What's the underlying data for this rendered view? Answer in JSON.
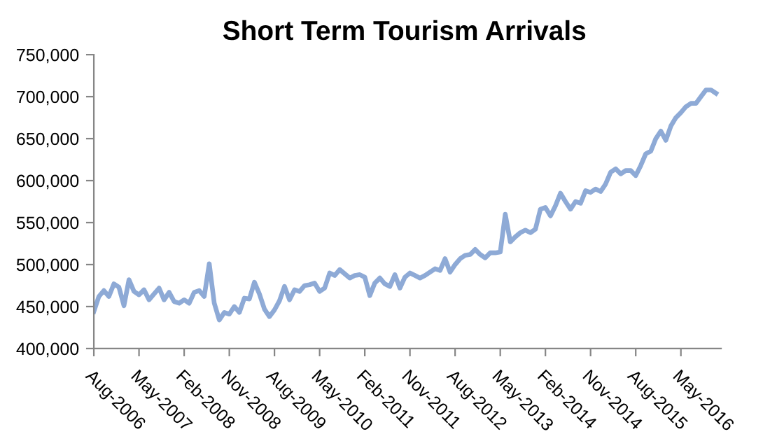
{
  "chart_data": {
    "type": "line",
    "title": "Short Term Tourism Arrivals",
    "categories": [
      "Aug-2006",
      null,
      null,
      null,
      null,
      null,
      null,
      null,
      null,
      "May-2007",
      null,
      null,
      null,
      null,
      null,
      null,
      null,
      null,
      "Feb-2008",
      null,
      null,
      null,
      null,
      null,
      null,
      null,
      null,
      "Nov-2008",
      null,
      null,
      null,
      null,
      null,
      null,
      null,
      null,
      "Aug-2009",
      null,
      null,
      null,
      null,
      null,
      null,
      null,
      null,
      "May-2010",
      null,
      null,
      null,
      null,
      null,
      null,
      null,
      null,
      "Feb-2011",
      null,
      null,
      null,
      null,
      null,
      null,
      null,
      null,
      "Nov-2011",
      null,
      null,
      null,
      null,
      null,
      null,
      null,
      null,
      "Aug-2012",
      null,
      null,
      null,
      null,
      null,
      null,
      null,
      null,
      "May-2013",
      null,
      null,
      null,
      null,
      null,
      null,
      null,
      null,
      "Feb-2014",
      null,
      null,
      null,
      null,
      null,
      null,
      null,
      null,
      "Nov-2014",
      null,
      null,
      null,
      null,
      null,
      null,
      null,
      null,
      "Aug-2015",
      null,
      null,
      null,
      null,
      null,
      null,
      null,
      null,
      "May-2016",
      null,
      null,
      null,
      null,
      null,
      null,
      null
    ],
    "series": [
      {
        "color": "#8eaad6",
        "values": [
          444000,
          462000,
          469000,
          462000,
          477000,
          473000,
          451000,
          482000,
          468000,
          464000,
          470000,
          458000,
          465000,
          472000,
          458000,
          467000,
          456000,
          454000,
          458000,
          454000,
          467000,
          469000,
          462000,
          501000,
          454000,
          434000,
          443000,
          441000,
          450000,
          443000,
          460000,
          459000,
          479000,
          465000,
          447000,
          438000,
          446000,
          457000,
          474000,
          458000,
          470000,
          468000,
          475000,
          476000,
          478000,
          468000,
          472000,
          490000,
          487000,
          494000,
          489000,
          484000,
          487000,
          488000,
          485000,
          463000,
          478000,
          484000,
          477000,
          474000,
          488000,
          472000,
          485000,
          490000,
          487000,
          484000,
          487000,
          491000,
          495000,
          493000,
          507000,
          491000,
          500000,
          507000,
          511000,
          512000,
          518000,
          512000,
          508000,
          514000,
          514000,
          515000,
          560000,
          527000,
          533000,
          538000,
          541000,
          538000,
          542000,
          566000,
          568000,
          558000,
          570000,
          585000,
          575000,
          566000,
          575000,
          573000,
          588000,
          586000,
          590000,
          587000,
          596000,
          610000,
          614000,
          608000,
          612000,
          612000,
          606000,
          618000,
          632000,
          635000,
          650000,
          659000,
          648000,
          665000,
          675000,
          681000,
          688000,
          692000,
          692000,
          700000,
          708000,
          708000,
          704000
        ]
      }
    ],
    "ylim": [
      400000,
      750000
    ],
    "yticks": [
      {
        "value": 400000,
        "label": "400,000"
      },
      {
        "value": 450000,
        "label": "450,000"
      },
      {
        "value": 500000,
        "label": "500,000"
      },
      {
        "value": 550000,
        "label": "550,000"
      },
      {
        "value": 600000,
        "label": "600,000"
      },
      {
        "value": 650000,
        "label": "650,000"
      },
      {
        "value": 700000,
        "label": "700,000"
      },
      {
        "value": 750000,
        "label": "750,000"
      }
    ],
    "grid": false,
    "marker": "none",
    "line_style": "solid"
  }
}
